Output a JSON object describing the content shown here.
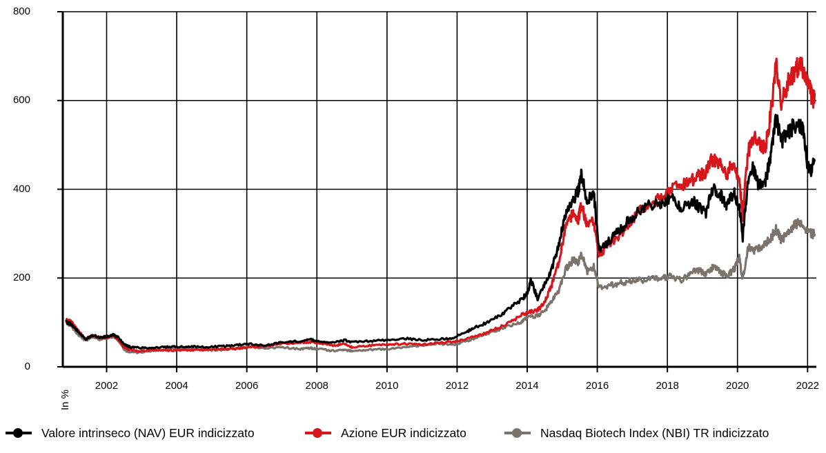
{
  "chart_data": {
    "type": "line",
    "title": "",
    "xlabel": "",
    "ylabel": "In %",
    "xlim": [
      2000.75,
      2022.25
    ],
    "ylim": [
      0,
      800
    ],
    "x_ticks": [
      "2002",
      "2004",
      "2006",
      "2008",
      "2010",
      "2012",
      "2014",
      "2016",
      "2018",
      "2020",
      "2022"
    ],
    "y_ticks": [
      "0",
      "200",
      "400",
      "600",
      "800"
    ],
    "grid": true,
    "legend_position": "bottom",
    "series": [
      {
        "name": "Valore intrinseco (NAV) EUR indicizzato",
        "color": "#000000",
        "points": [
          [
            2000.85,
            100
          ],
          [
            2001.0,
            96
          ],
          [
            2001.2,
            78
          ],
          [
            2001.4,
            62
          ],
          [
            2001.6,
            72
          ],
          [
            2001.8,
            66
          ],
          [
            2002.0,
            68
          ],
          [
            2002.2,
            72
          ],
          [
            2002.35,
            65
          ],
          [
            2002.5,
            50
          ],
          [
            2002.7,
            44
          ],
          [
            2003.0,
            43
          ],
          [
            2003.3,
            43
          ],
          [
            2003.6,
            44
          ],
          [
            2004.0,
            45
          ],
          [
            2004.4,
            46
          ],
          [
            2004.8,
            44
          ],
          [
            2005.2,
            46
          ],
          [
            2005.6,
            48
          ],
          [
            2006.0,
            52
          ],
          [
            2006.5,
            48
          ],
          [
            2007.0,
            55
          ],
          [
            2007.5,
            58
          ],
          [
            2007.8,
            62
          ],
          [
            2008.0,
            58
          ],
          [
            2008.5,
            55
          ],
          [
            2008.8,
            60
          ],
          [
            2009.0,
            55
          ],
          [
            2009.5,
            58
          ],
          [
            2010.0,
            60
          ],
          [
            2010.5,
            64
          ],
          [
            2011.0,
            60
          ],
          [
            2011.5,
            62
          ],
          [
            2011.9,
            65
          ],
          [
            2012.3,
            80
          ],
          [
            2012.6,
            92
          ],
          [
            2013.0,
            105
          ],
          [
            2013.4,
            125
          ],
          [
            2013.8,
            150
          ],
          [
            2014.0,
            165
          ],
          [
            2014.1,
            195
          ],
          [
            2014.3,
            155
          ],
          [
            2014.5,
            185
          ],
          [
            2014.7,
            220
          ],
          [
            2014.9,
            275
          ],
          [
            2015.1,
            345
          ],
          [
            2015.3,
            375
          ],
          [
            2015.45,
            395
          ],
          [
            2015.55,
            435
          ],
          [
            2015.7,
            375
          ],
          [
            2015.9,
            390
          ],
          [
            2016.05,
            265
          ],
          [
            2016.3,
            280
          ],
          [
            2016.6,
            305
          ],
          [
            2016.9,
            330
          ],
          [
            2017.2,
            350
          ],
          [
            2017.6,
            368
          ],
          [
            2017.9,
            365
          ],
          [
            2018.1,
            380
          ],
          [
            2018.4,
            355
          ],
          [
            2018.7,
            375
          ],
          [
            2018.9,
            360
          ],
          [
            2019.1,
            345
          ],
          [
            2019.3,
            405
          ],
          [
            2019.5,
            390
          ],
          [
            2019.7,
            365
          ],
          [
            2019.9,
            395
          ],
          [
            2020.05,
            360
          ],
          [
            2020.15,
            290
          ],
          [
            2020.3,
            420
          ],
          [
            2020.45,
            450
          ],
          [
            2020.6,
            408
          ],
          [
            2020.8,
            420
          ],
          [
            2020.95,
            475
          ],
          [
            2021.1,
            565
          ],
          [
            2021.25,
            505
          ],
          [
            2021.45,
            530
          ],
          [
            2021.65,
            545
          ],
          [
            2021.85,
            540
          ],
          [
            2022.0,
            455
          ],
          [
            2022.1,
            440
          ],
          [
            2022.2,
            465
          ]
        ]
      },
      {
        "name": "Azione EUR indicizzato",
        "color": "#d7161c",
        "points": [
          [
            2000.85,
            108
          ],
          [
            2001.0,
            100
          ],
          [
            2001.2,
            80
          ],
          [
            2001.4,
            63
          ],
          [
            2001.6,
            70
          ],
          [
            2001.8,
            65
          ],
          [
            2002.0,
            66
          ],
          [
            2002.2,
            70
          ],
          [
            2002.35,
            60
          ],
          [
            2002.5,
            42
          ],
          [
            2002.7,
            38
          ],
          [
            2003.0,
            35
          ],
          [
            2003.3,
            38
          ],
          [
            2003.6,
            37
          ],
          [
            2004.0,
            37
          ],
          [
            2004.4,
            38
          ],
          [
            2004.8,
            38
          ],
          [
            2005.2,
            40
          ],
          [
            2005.6,
            40
          ],
          [
            2006.0,
            44
          ],
          [
            2006.5,
            46
          ],
          [
            2007.0,
            52
          ],
          [
            2007.5,
            54
          ],
          [
            2007.8,
            56
          ],
          [
            2008.0,
            54
          ],
          [
            2008.5,
            48
          ],
          [
            2008.8,
            52
          ],
          [
            2009.0,
            44
          ],
          [
            2009.5,
            48
          ],
          [
            2010.0,
            50
          ],
          [
            2010.5,
            52
          ],
          [
            2011.0,
            50
          ],
          [
            2011.5,
            54
          ],
          [
            2011.9,
            56
          ],
          [
            2012.3,
            64
          ],
          [
            2012.6,
            70
          ],
          [
            2013.0,
            82
          ],
          [
            2013.4,
            95
          ],
          [
            2013.8,
            115
          ],
          [
            2014.0,
            122
          ],
          [
            2014.3,
            128
          ],
          [
            2014.5,
            145
          ],
          [
            2014.7,
            185
          ],
          [
            2014.9,
            235
          ],
          [
            2015.1,
            315
          ],
          [
            2015.3,
            345
          ],
          [
            2015.45,
            330
          ],
          [
            2015.55,
            365
          ],
          [
            2015.7,
            320
          ],
          [
            2015.9,
            330
          ],
          [
            2016.05,
            250
          ],
          [
            2016.3,
            275
          ],
          [
            2016.6,
            295
          ],
          [
            2016.9,
            320
          ],
          [
            2017.2,
            350
          ],
          [
            2017.6,
            370
          ],
          [
            2017.9,
            385
          ],
          [
            2018.1,
            405
          ],
          [
            2018.4,
            410
          ],
          [
            2018.7,
            420
          ],
          [
            2018.9,
            430
          ],
          [
            2019.1,
            440
          ],
          [
            2019.3,
            470
          ],
          [
            2019.5,
            455
          ],
          [
            2019.7,
            435
          ],
          [
            2019.9,
            465
          ],
          [
            2020.05,
            420
          ],
          [
            2020.15,
            340
          ],
          [
            2020.3,
            485
          ],
          [
            2020.45,
            515
          ],
          [
            2020.6,
            505
          ],
          [
            2020.8,
            495
          ],
          [
            2020.95,
            570
          ],
          [
            2021.1,
            680
          ],
          [
            2021.25,
            595
          ],
          [
            2021.45,
            640
          ],
          [
            2021.65,
            670
          ],
          [
            2021.8,
            685
          ],
          [
            2021.95,
            645
          ],
          [
            2022.05,
            630
          ],
          [
            2022.15,
            600
          ],
          [
            2022.2,
            615
          ]
        ]
      },
      {
        "name": "Nasdaq Biotech Index (NBI) TR indicizzato",
        "color": "#7b746d",
        "points": [
          [
            2000.85,
            102
          ],
          [
            2001.0,
            90
          ],
          [
            2001.2,
            72
          ],
          [
            2001.4,
            58
          ],
          [
            2001.6,
            68
          ],
          [
            2001.8,
            62
          ],
          [
            2002.0,
            64
          ],
          [
            2002.2,
            68
          ],
          [
            2002.35,
            58
          ],
          [
            2002.5,
            38
          ],
          [
            2002.7,
            32
          ],
          [
            2003.0,
            33
          ],
          [
            2003.3,
            36
          ],
          [
            2003.6,
            38
          ],
          [
            2004.0,
            42
          ],
          [
            2004.4,
            40
          ],
          [
            2004.8,
            38
          ],
          [
            2005.2,
            38
          ],
          [
            2005.6,
            40
          ],
          [
            2006.0,
            46
          ],
          [
            2006.5,
            42
          ],
          [
            2007.0,
            44
          ],
          [
            2007.5,
            40
          ],
          [
            2007.8,
            42
          ],
          [
            2008.0,
            40
          ],
          [
            2008.5,
            36
          ],
          [
            2008.8,
            38
          ],
          [
            2009.0,
            36
          ],
          [
            2009.5,
            38
          ],
          [
            2010.0,
            40
          ],
          [
            2010.5,
            44
          ],
          [
            2011.0,
            48
          ],
          [
            2011.5,
            52
          ],
          [
            2011.9,
            50
          ],
          [
            2012.3,
            58
          ],
          [
            2012.6,
            68
          ],
          [
            2013.0,
            78
          ],
          [
            2013.4,
            90
          ],
          [
            2013.8,
            100
          ],
          [
            2014.0,
            112
          ],
          [
            2014.3,
            115
          ],
          [
            2014.5,
            125
          ],
          [
            2014.7,
            150
          ],
          [
            2014.9,
            170
          ],
          [
            2015.1,
            220
          ],
          [
            2015.3,
            240
          ],
          [
            2015.45,
            235
          ],
          [
            2015.55,
            255
          ],
          [
            2015.7,
            215
          ],
          [
            2015.9,
            225
          ],
          [
            2016.05,
            180
          ],
          [
            2016.3,
            182
          ],
          [
            2016.6,
            188
          ],
          [
            2016.9,
            192
          ],
          [
            2017.2,
            195
          ],
          [
            2017.6,
            198
          ],
          [
            2017.9,
            200
          ],
          [
            2018.1,
            205
          ],
          [
            2018.4,
            195
          ],
          [
            2018.7,
            212
          ],
          [
            2018.9,
            218
          ],
          [
            2019.1,
            210
          ],
          [
            2019.3,
            225
          ],
          [
            2019.5,
            215
          ],
          [
            2019.7,
            205
          ],
          [
            2019.9,
            220
          ],
          [
            2020.05,
            245
          ],
          [
            2020.15,
            195
          ],
          [
            2020.3,
            270
          ],
          [
            2020.45,
            260
          ],
          [
            2020.6,
            265
          ],
          [
            2020.8,
            280
          ],
          [
            2020.95,
            290
          ],
          [
            2021.1,
            310
          ],
          [
            2021.25,
            285
          ],
          [
            2021.45,
            300
          ],
          [
            2021.65,
            320
          ],
          [
            2021.8,
            325
          ],
          [
            2021.95,
            305
          ],
          [
            2022.1,
            300
          ],
          [
            2022.2,
            298
          ]
        ]
      }
    ]
  }
}
